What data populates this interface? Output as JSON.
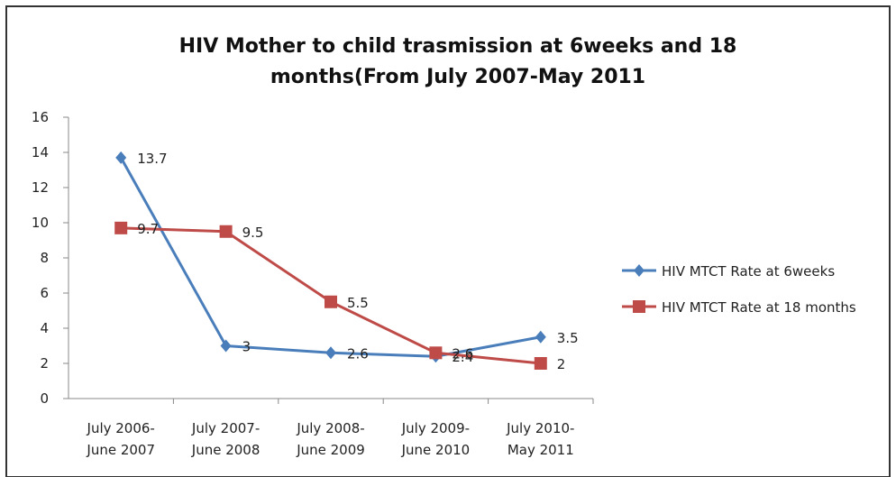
{
  "chart_data": {
    "type": "line",
    "title": "HIV Mother to child trasmission at 6weeks and 18\nmonths(From July 2007-May 2011",
    "categories": [
      "July 2006-\nJune 2007",
      "July 2007-\nJune 2008",
      "July 2008-\nJune 2009",
      "July 2009-\nJune 2010",
      "July 2010-\nMay 2011"
    ],
    "series": [
      {
        "name": "HIV MTCT Rate at 6weeks",
        "color": "#4a7ebb",
        "marker": "diamond",
        "values": [
          13.7,
          3,
          2.6,
          2.4,
          3.5
        ]
      },
      {
        "name": "HIV MTCT Rate at 18 months",
        "color": "#be4b48",
        "marker": "square",
        "values": [
          9.7,
          9.5,
          5.5,
          2.6,
          2
        ]
      }
    ],
    "ylim": [
      0,
      16
    ],
    "yticks": [
      0,
      2,
      4,
      6,
      8,
      10,
      12,
      14,
      16
    ],
    "grid": false,
    "legend": "right",
    "data_labels": true
  }
}
